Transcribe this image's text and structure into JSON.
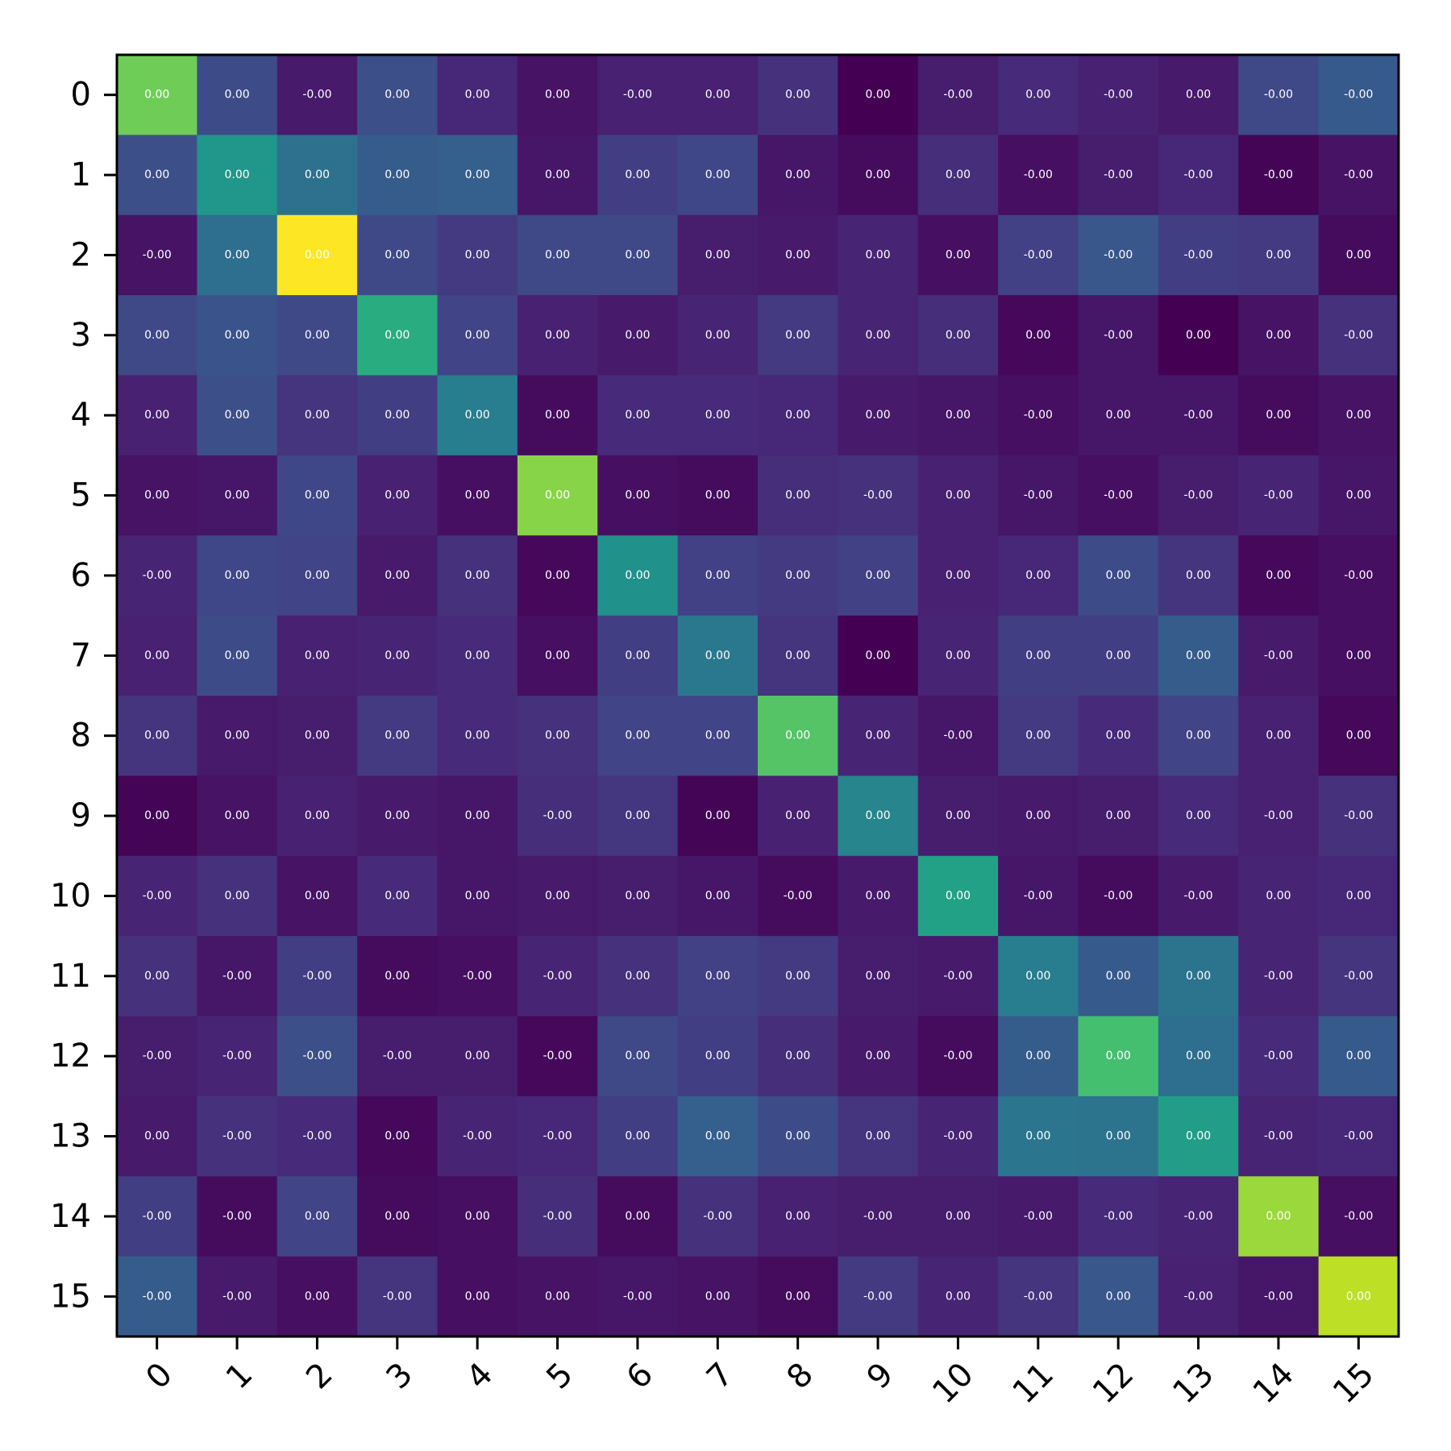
{
  "chart_data": {
    "type": "heatmap",
    "title": "",
    "xlabel": "",
    "ylabel": "",
    "x_ticks": [
      "0",
      "1",
      "2",
      "3",
      "4",
      "5",
      "6",
      "7",
      "8",
      "9",
      "10",
      "11",
      "12",
      "13",
      "14",
      "15"
    ],
    "y_ticks": [
      "0",
      "1",
      "2",
      "3",
      "4",
      "5",
      "6",
      "7",
      "8",
      "9",
      "10",
      "11",
      "12",
      "13",
      "14",
      "15"
    ],
    "colormap": "viridis",
    "color_range": [
      0,
      1
    ],
    "grid": false,
    "legend": "none",
    "color_values": [
      [
        0.78,
        0.23,
        0.07,
        0.24,
        0.11,
        0.05,
        0.09,
        0.09,
        0.14,
        0.0,
        0.08,
        0.12,
        0.09,
        0.07,
        0.22,
        0.28
      ],
      [
        0.24,
        0.52,
        0.37,
        0.29,
        0.3,
        0.06,
        0.18,
        0.21,
        0.06,
        0.03,
        0.13,
        0.04,
        0.08,
        0.11,
        0.01,
        0.05
      ],
      [
        0.05,
        0.36,
        1.0,
        0.22,
        0.17,
        0.22,
        0.22,
        0.08,
        0.07,
        0.1,
        0.04,
        0.19,
        0.27,
        0.18,
        0.17,
        0.03
      ],
      [
        0.22,
        0.26,
        0.22,
        0.62,
        0.2,
        0.09,
        0.07,
        0.1,
        0.17,
        0.1,
        0.13,
        0.02,
        0.06,
        0.0,
        0.05,
        0.14
      ],
      [
        0.09,
        0.24,
        0.15,
        0.18,
        0.42,
        0.03,
        0.12,
        0.12,
        0.11,
        0.07,
        0.06,
        0.04,
        0.06,
        0.06,
        0.03,
        0.05
      ],
      [
        0.05,
        0.06,
        0.21,
        0.09,
        0.04,
        0.82,
        0.04,
        0.03,
        0.13,
        0.14,
        0.09,
        0.06,
        0.04,
        0.08,
        0.1,
        0.06
      ],
      [
        0.1,
        0.21,
        0.2,
        0.07,
        0.14,
        0.02,
        0.5,
        0.19,
        0.17,
        0.19,
        0.09,
        0.11,
        0.23,
        0.15,
        0.02,
        0.04
      ],
      [
        0.09,
        0.23,
        0.09,
        0.1,
        0.12,
        0.04,
        0.18,
        0.4,
        0.15,
        0.0,
        0.1,
        0.18,
        0.18,
        0.29,
        0.07,
        0.04
      ],
      [
        0.15,
        0.07,
        0.08,
        0.17,
        0.12,
        0.14,
        0.2,
        0.2,
        0.73,
        0.1,
        0.06,
        0.17,
        0.12,
        0.2,
        0.09,
        0.02
      ],
      [
        0.01,
        0.05,
        0.09,
        0.07,
        0.06,
        0.13,
        0.16,
        0.01,
        0.09,
        0.45,
        0.08,
        0.07,
        0.08,
        0.12,
        0.09,
        0.14
      ],
      [
        0.1,
        0.14,
        0.05,
        0.12,
        0.06,
        0.07,
        0.08,
        0.06,
        0.03,
        0.07,
        0.57,
        0.06,
        0.03,
        0.07,
        0.1,
        0.11
      ],
      [
        0.14,
        0.06,
        0.18,
        0.03,
        0.04,
        0.1,
        0.14,
        0.19,
        0.17,
        0.08,
        0.07,
        0.42,
        0.28,
        0.38,
        0.1,
        0.15
      ],
      [
        0.08,
        0.1,
        0.24,
        0.08,
        0.08,
        0.02,
        0.22,
        0.18,
        0.13,
        0.07,
        0.03,
        0.29,
        0.7,
        0.36,
        0.12,
        0.28
      ],
      [
        0.07,
        0.14,
        0.12,
        0.02,
        0.1,
        0.11,
        0.18,
        0.3,
        0.23,
        0.15,
        0.1,
        0.39,
        0.38,
        0.55,
        0.1,
        0.11
      ],
      [
        0.18,
        0.03,
        0.2,
        0.03,
        0.04,
        0.13,
        0.03,
        0.14,
        0.09,
        0.08,
        0.08,
        0.07,
        0.12,
        0.1,
        0.85,
        0.04
      ],
      [
        0.29,
        0.07,
        0.04,
        0.15,
        0.04,
        0.05,
        0.06,
        0.05,
        0.03,
        0.17,
        0.1,
        0.15,
        0.27,
        0.09,
        0.06,
        0.9
      ]
    ],
    "cell_labels": [
      [
        "0.00",
        "0.00",
        "-0.00",
        "0.00",
        "0.00",
        "0.00",
        "-0.00",
        "0.00",
        "0.00",
        "0.00",
        "-0.00",
        "0.00",
        "-0.00",
        "0.00",
        "-0.00",
        "-0.00"
      ],
      [
        "0.00",
        "0.00",
        "0.00",
        "0.00",
        "0.00",
        "0.00",
        "0.00",
        "0.00",
        "0.00",
        "0.00",
        "0.00",
        "-0.00",
        "-0.00",
        "-0.00",
        "-0.00",
        "-0.00"
      ],
      [
        "-0.00",
        "0.00",
        "0.00",
        "0.00",
        "0.00",
        "0.00",
        "0.00",
        "0.00",
        "0.00",
        "0.00",
        "0.00",
        "-0.00",
        "-0.00",
        "-0.00",
        "0.00",
        "0.00"
      ],
      [
        "0.00",
        "0.00",
        "0.00",
        "0.00",
        "0.00",
        "0.00",
        "0.00",
        "0.00",
        "0.00",
        "0.00",
        "0.00",
        "0.00",
        "-0.00",
        "0.00",
        "0.00",
        "-0.00"
      ],
      [
        "0.00",
        "0.00",
        "0.00",
        "0.00",
        "0.00",
        "0.00",
        "0.00",
        "0.00",
        "0.00",
        "0.00",
        "0.00",
        "-0.00",
        "0.00",
        "-0.00",
        "0.00",
        "0.00"
      ],
      [
        "0.00",
        "0.00",
        "0.00",
        "0.00",
        "0.00",
        "0.00",
        "0.00",
        "0.00",
        "0.00",
        "-0.00",
        "0.00",
        "-0.00",
        "-0.00",
        "-0.00",
        "-0.00",
        "0.00"
      ],
      [
        "-0.00",
        "0.00",
        "0.00",
        "0.00",
        "0.00",
        "0.00",
        "0.00",
        "0.00",
        "0.00",
        "0.00",
        "0.00",
        "0.00",
        "0.00",
        "0.00",
        "0.00",
        "-0.00"
      ],
      [
        "0.00",
        "0.00",
        "0.00",
        "0.00",
        "0.00",
        "0.00",
        "0.00",
        "0.00",
        "0.00",
        "0.00",
        "0.00",
        "0.00",
        "0.00",
        "0.00",
        "-0.00",
        "0.00"
      ],
      [
        "0.00",
        "0.00",
        "0.00",
        "0.00",
        "0.00",
        "0.00",
        "0.00",
        "0.00",
        "0.00",
        "0.00",
        "-0.00",
        "0.00",
        "0.00",
        "0.00",
        "0.00",
        "0.00"
      ],
      [
        "0.00",
        "0.00",
        "0.00",
        "0.00",
        "0.00",
        "-0.00",
        "0.00",
        "0.00",
        "0.00",
        "0.00",
        "0.00",
        "0.00",
        "0.00",
        "0.00",
        "-0.00",
        "-0.00"
      ],
      [
        "-0.00",
        "0.00",
        "0.00",
        "0.00",
        "0.00",
        "0.00",
        "0.00",
        "0.00",
        "-0.00",
        "0.00",
        "0.00",
        "-0.00",
        "-0.00",
        "-0.00",
        "0.00",
        "0.00"
      ],
      [
        "0.00",
        "-0.00",
        "-0.00",
        "0.00",
        "-0.00",
        "-0.00",
        "0.00",
        "0.00",
        "0.00",
        "0.00",
        "-0.00",
        "0.00",
        "0.00",
        "0.00",
        "-0.00",
        "-0.00"
      ],
      [
        "-0.00",
        "-0.00",
        "-0.00",
        "-0.00",
        "0.00",
        "-0.00",
        "0.00",
        "0.00",
        "0.00",
        "0.00",
        "-0.00",
        "0.00",
        "0.00",
        "0.00",
        "-0.00",
        "0.00"
      ],
      [
        "0.00",
        "-0.00",
        "-0.00",
        "0.00",
        "-0.00",
        "-0.00",
        "0.00",
        "0.00",
        "0.00",
        "0.00",
        "-0.00",
        "0.00",
        "0.00",
        "0.00",
        "-0.00",
        "-0.00"
      ],
      [
        "-0.00",
        "-0.00",
        "0.00",
        "0.00",
        "0.00",
        "-0.00",
        "0.00",
        "-0.00",
        "0.00",
        "-0.00",
        "0.00",
        "-0.00",
        "-0.00",
        "-0.00",
        "0.00",
        "-0.00"
      ],
      [
        "-0.00",
        "-0.00",
        "0.00",
        "-0.00",
        "0.00",
        "0.00",
        "-0.00",
        "0.00",
        "0.00",
        "-0.00",
        "0.00",
        "-0.00",
        "0.00",
        "-0.00",
        "-0.00",
        "0.00"
      ]
    ]
  }
}
